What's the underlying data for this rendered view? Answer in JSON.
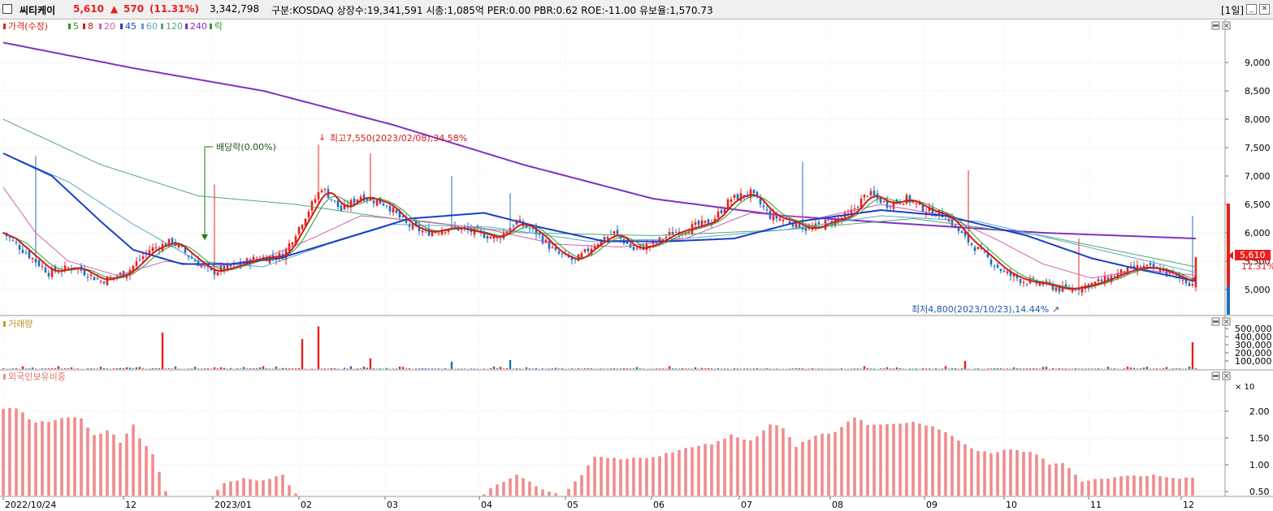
{
  "header": {
    "name": "씨티케이",
    "price": "5,610",
    "arrow": "▲",
    "change": "570",
    "change_pct": "(11.31%)",
    "volume": "3,342,798",
    "info": "구분:KOSDAQ  상장수:19,341,591  시총:1,085억  PER:0.00  PBR:0.62  ROE:-11.00  유보율:1,570.73",
    "period": "[1일]"
  },
  "colors": {
    "up": "#e8201c",
    "down": "#1c6fc4",
    "ma5": "#d11c1c",
    "ma8": "#2c9a2c",
    "ma20": "#d060b0",
    "ma45": "#1a3fc8",
    "ma60": "#5aa8c8",
    "ma120": "#50a878",
    "ma240": "#8030c0",
    "foreign": "#f08c8c"
  },
  "legend": {
    "price": "가격(수정)",
    "ma5": "5",
    "ma8": "8",
    "ma20": "20",
    "ma45": "45",
    "ma60": "60",
    "ma120": "120",
    "ma240": "240",
    "ex": "락"
  },
  "annotations": {
    "dividend": "배당락(0.00%)",
    "high": "최고7,550(2023/02/08),34.58%",
    "low": "최저4,800(2023/10/23),14.44%"
  },
  "last_price_tag": {
    "value": "5,610",
    "pct": "11.31%"
  },
  "panels": {
    "volume": "거래량",
    "foreign": "외국인보유비중"
  },
  "volume_unit": "× 10",
  "x_labels": [
    "2022/10/24",
    "12",
    "2023/01",
    "02",
    "03",
    "04",
    "05",
    "06",
    "07",
    "08",
    "09",
    "10",
    "11",
    "12"
  ],
  "chart_data": {
    "type": "candlestick",
    "price_axis": {
      "ticks": [
        5000,
        5500,
        6000,
        6500,
        7000,
        7500,
        8000,
        8500,
        9000
      ],
      "tick_labels": [
        "5,000",
        "5,500",
        "6,000",
        "6,500",
        "7,000",
        "7,500",
        "8,000",
        "8,500",
        "9,000"
      ]
    },
    "volume_axis": {
      "ticks": [
        100000,
        200000,
        300000,
        400000,
        500000
      ],
      "tick_labels": [
        "100,000",
        "200,000",
        "300,000",
        "400,000",
        "500,000"
      ]
    },
    "foreign_axis": {
      "ticks": [
        0.5,
        1.0,
        1.5,
        2.0
      ],
      "tick_labels": [
        "0.50",
        "1.00",
        "1.50",
        "2.00"
      ]
    },
    "price_keypoints": [
      [
        0,
        6000
      ],
      [
        8,
        5600
      ],
      [
        14,
        5300
      ],
      [
        22,
        5400
      ],
      [
        30,
        5150
      ],
      [
        38,
        5300
      ],
      [
        45,
        5700
      ],
      [
        52,
        5850
      ],
      [
        58,
        5550
      ],
      [
        64,
        5300
      ],
      [
        70,
        5400
      ],
      [
        78,
        5550
      ],
      [
        86,
        5600
      ],
      [
        93,
        6300
      ],
      [
        98,
        6800
      ],
      [
        104,
        6400
      ],
      [
        110,
        6650
      ],
      [
        118,
        6500
      ],
      [
        124,
        6150
      ],
      [
        130,
        6000
      ],
      [
        138,
        6100
      ],
      [
        146,
        6000
      ],
      [
        152,
        5900
      ],
      [
        158,
        6200
      ],
      [
        164,
        6000
      ],
      [
        170,
        5650
      ],
      [
        176,
        5500
      ],
      [
        182,
        5800
      ],
      [
        188,
        6000
      ],
      [
        194,
        5700
      ],
      [
        200,
        5800
      ],
      [
        206,
        6000
      ],
      [
        212,
        6100
      ],
      [
        218,
        6200
      ],
      [
        224,
        6600
      ],
      [
        230,
        6700
      ],
      [
        236,
        6300
      ],
      [
        242,
        6200
      ],
      [
        248,
        6050
      ],
      [
        254,
        6200
      ],
      [
        260,
        6300
      ],
      [
        266,
        6700
      ],
      [
        272,
        6500
      ],
      [
        278,
        6600
      ],
      [
        284,
        6400
      ],
      [
        290,
        6300
      ],
      [
        296,
        5900
      ],
      [
        302,
        5600
      ],
      [
        308,
        5300
      ],
      [
        314,
        5150
      ],
      [
        320,
        5100
      ],
      [
        326,
        5000
      ],
      [
        332,
        5050
      ],
      [
        338,
        5150
      ],
      [
        344,
        5300
      ],
      [
        350,
        5400
      ],
      [
        356,
        5350
      ],
      [
        362,
        5200
      ],
      [
        366,
        5100
      ],
      [
        367,
        5610
      ]
    ],
    "ma240_keypoints": [
      [
        0,
        9350
      ],
      [
        40,
        8900
      ],
      [
        80,
        8500
      ],
      [
        120,
        7900
      ],
      [
        160,
        7200
      ],
      [
        200,
        6600
      ],
      [
        240,
        6300
      ],
      [
        280,
        6150
      ],
      [
        320,
        6000
      ],
      [
        367,
        5900
      ]
    ],
    "ma120_keypoints": [
      [
        0,
        8000
      ],
      [
        30,
        7200
      ],
      [
        60,
        6650
      ],
      [
        90,
        6500
      ],
      [
        120,
        6250
      ],
      [
        160,
        6000
      ],
      [
        200,
        5950
      ],
      [
        240,
        6050
      ],
      [
        280,
        6250
      ],
      [
        320,
        5950
      ],
      [
        367,
        5400
      ]
    ],
    "ma60_keypoints": [
      [
        0,
        7400
      ],
      [
        20,
        6900
      ],
      [
        40,
        6150
      ],
      [
        60,
        5500
      ],
      [
        80,
        5400
      ],
      [
        100,
        5800
      ],
      [
        120,
        6150
      ],
      [
        150,
        6100
      ],
      [
        180,
        5850
      ],
      [
        210,
        5900
      ],
      [
        240,
        6050
      ],
      [
        270,
        6300
      ],
      [
        300,
        6200
      ],
      [
        330,
        5800
      ],
      [
        367,
        5300
      ]
    ],
    "ma45_keypoints": [
      [
        0,
        7400
      ],
      [
        15,
        7000
      ],
      [
        30,
        6200
      ],
      [
        40,
        5700
      ],
      [
        55,
        5450
      ],
      [
        70,
        5450
      ],
      [
        85,
        5550
      ],
      [
        105,
        5900
      ],
      [
        125,
        6250
      ],
      [
        148,
        6350
      ],
      [
        165,
        6100
      ],
      [
        185,
        5850
      ],
      [
        205,
        5850
      ],
      [
        225,
        5900
      ],
      [
        245,
        6200
      ],
      [
        270,
        6400
      ],
      [
        290,
        6300
      ],
      [
        315,
        5950
      ],
      [
        335,
        5550
      ],
      [
        350,
        5350
      ],
      [
        367,
        5150
      ]
    ],
    "ma20_keypoints": [
      [
        0,
        6800
      ],
      [
        10,
        6000
      ],
      [
        20,
        5500
      ],
      [
        35,
        5250
      ],
      [
        50,
        5500
      ],
      [
        65,
        5400
      ],
      [
        80,
        5550
      ],
      [
        95,
        5900
      ],
      [
        110,
        6300
      ],
      [
        130,
        6200
      ],
      [
        150,
        6050
      ],
      [
        170,
        5800
      ],
      [
        190,
        5750
      ],
      [
        210,
        5900
      ],
      [
        230,
        6350
      ],
      [
        250,
        6250
      ],
      [
        270,
        6500
      ],
      [
        290,
        6300
      ],
      [
        305,
        5900
      ],
      [
        320,
        5450
      ],
      [
        335,
        5200
      ],
      [
        350,
        5350
      ],
      [
        367,
        5250
      ]
    ],
    "volume_spikes": [
      {
        "i": 49,
        "v": 450000
      },
      {
        "i": 92,
        "v": 370000
      },
      {
        "i": 97,
        "v": 525000
      },
      {
        "i": 113,
        "v": 130000
      },
      {
        "i": 138,
        "v": 90000
      },
      {
        "i": 156,
        "v": 110000
      },
      {
        "i": 296,
        "v": 100000
      },
      {
        "i": 366,
        "v": 330000
      }
    ],
    "foreign_keypoints": [
      [
        0,
        2.05
      ],
      [
        5,
        2.05
      ],
      [
        9,
        1.8
      ],
      [
        14,
        1.8
      ],
      [
        20,
        1.9
      ],
      [
        24,
        1.85
      ],
      [
        28,
        1.55
      ],
      [
        33,
        1.65
      ],
      [
        36,
        1.4
      ],
      [
        40,
        1.75
      ],
      [
        42,
        1.5
      ],
      [
        46,
        1.2
      ],
      [
        50,
        0.5
      ],
      [
        54,
        0.3
      ],
      [
        58,
        0.15
      ],
      [
        62,
        0.3
      ],
      [
        68,
        0.65
      ],
      [
        74,
        0.75
      ],
      [
        80,
        0.7
      ],
      [
        86,
        0.8
      ],
      [
        90,
        0.45
      ],
      [
        96,
        0.3
      ],
      [
        102,
        0.1
      ],
      [
        108,
        0.2
      ],
      [
        114,
        0.2
      ],
      [
        120,
        0.1
      ],
      [
        126,
        0.3
      ],
      [
        132,
        0.25
      ],
      [
        138,
        0.3
      ],
      [
        144,
        0.3
      ],
      [
        150,
        0.55
      ],
      [
        158,
        0.8
      ],
      [
        166,
        0.55
      ],
      [
        172,
        0.4
      ],
      [
        178,
        0.8
      ],
      [
        182,
        1.15
      ],
      [
        190,
        1.1
      ],
      [
        200,
        1.15
      ],
      [
        210,
        1.3
      ],
      [
        218,
        1.4
      ],
      [
        224,
        1.55
      ],
      [
        230,
        1.45
      ],
      [
        236,
        1.75
      ],
      [
        240,
        1.7
      ],
      [
        244,
        1.35
      ],
      [
        250,
        1.55
      ],
      [
        256,
        1.6
      ],
      [
        262,
        1.9
      ],
      [
        266,
        1.75
      ],
      [
        272,
        1.75
      ],
      [
        280,
        1.8
      ],
      [
        286,
        1.7
      ],
      [
        292,
        1.55
      ],
      [
        298,
        1.3
      ],
      [
        304,
        1.2
      ],
      [
        310,
        1.3
      ],
      [
        318,
        1.2
      ],
      [
        322,
        1.0
      ],
      [
        326,
        1.05
      ],
      [
        332,
        0.7
      ],
      [
        340,
        0.75
      ],
      [
        348,
        0.8
      ],
      [
        356,
        0.8
      ],
      [
        362,
        0.75
      ],
      [
        367,
        0.75
      ]
    ]
  }
}
